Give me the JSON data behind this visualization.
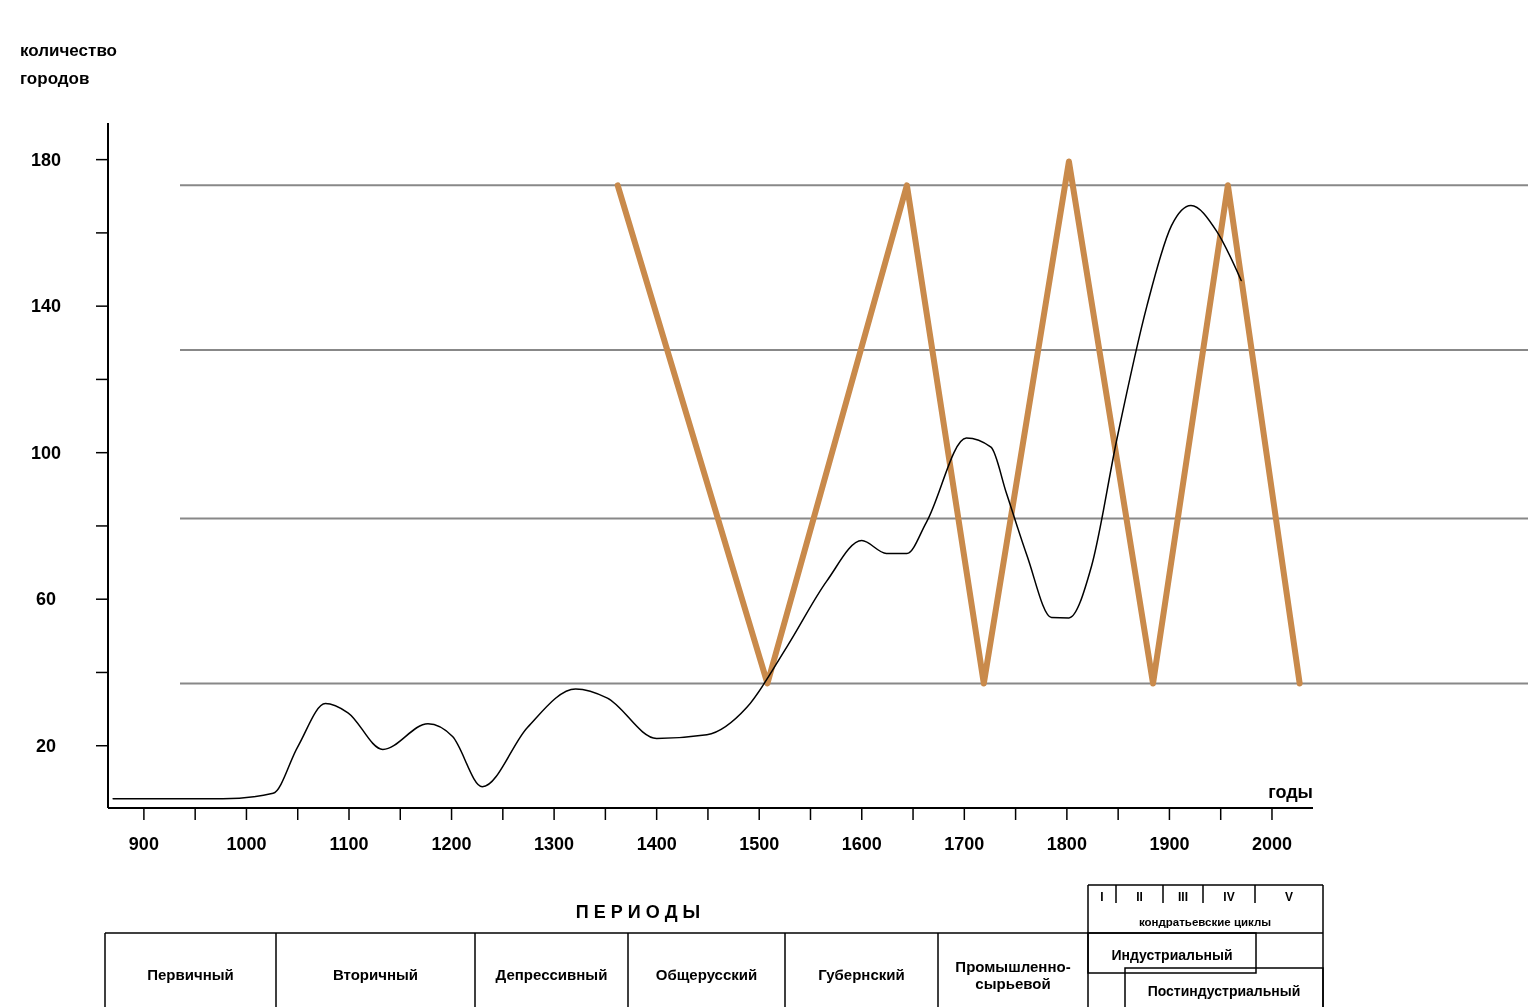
{
  "chart_data": {
    "type": "line",
    "xlabel": "годы",
    "ylabel": "количество городов",
    "xlim": [
      865,
      2040
    ],
    "ylim": [
      3,
      190
    ],
    "xticks": [
      900,
      {
        "value": 950,
        "label": null
      },
      1000,
      {
        "value": 1050,
        "label": null
      },
      1100,
      {
        "value": 1150,
        "label": null
      },
      1200,
      {
        "value": 1250,
        "label": null
      },
      1300,
      {
        "value": 1350,
        "label": null
      },
      1400,
      {
        "value": 1450,
        "label": null
      },
      1500,
      {
        "value": 1550,
        "label": null
      },
      1600,
      {
        "value": 1650,
        "label": null
      },
      1700,
      {
        "value": 1750,
        "label": null
      },
      1800,
      {
        "value": 1850,
        "label": null
      },
      1900,
      {
        "value": 1950,
        "label": null
      },
      2000
    ],
    "yticks": [
      20,
      {
        "value": 40,
        "label": null
      },
      60,
      {
        "value": 80,
        "label": null
      },
      100,
      {
        "value": 120,
        "label": null
      },
      140,
      {
        "value": 160,
        "label": null
      },
      180
    ],
    "grid": false,
    "legend": false,
    "marker": "none",
    "line_style": "solid",
    "series": [
      {
        "color": "#000000",
        "x": [
          870,
          977,
          1026,
          1050,
          1077,
          1099,
          1133,
          1177,
          1201,
          1230,
          1274,
          1321,
          1352,
          1400,
          1449,
          1488,
          1527,
          1566,
          1600,
          1624,
          1644,
          1663,
          1702,
          1726,
          1741,
          1761,
          1785,
          1802,
          1824,
          1849,
          1878,
          1902,
          1921,
          1946,
          1970
        ],
        "values": [
          5.5,
          5.5,
          7,
          19.7,
          31.5,
          29,
          19,
          26,
          22.5,
          8.8,
          25,
          35.5,
          33,
          22,
          23,
          30.5,
          47,
          65,
          76,
          72.5,
          72.5,
          81,
          104,
          101.5,
          89,
          72,
          55,
          54.9,
          69,
          104,
          140,
          162,
          167.5,
          160.5,
          147
        ]
      },
      {
        "color": "#c98a4b",
        "x": [
          1362,
          1508,
          1644,
          1719,
          1802,
          1884,
          1957,
          2027
        ],
        "values": [
          173,
          37,
          173,
          37,
          179.5,
          37,
          173,
          37
        ]
      }
    ],
    "ref_lines": [
      {
        "axis": "y",
        "value": 173,
        "color": "#888888"
      },
      {
        "axis": "y",
        "value": 128,
        "color": "#888888"
      },
      {
        "axis": "y",
        "value": 82,
        "color": "#888888"
      },
      {
        "axis": "y",
        "value": 37,
        "color": "#888888"
      }
    ],
    "annotations": [
      "П Е Р И О Д Ы",
      "Первичный",
      "Вторичный",
      "Депрессивный",
      "Общерусский",
      "Губернский",
      "Промышленно-сырьевой",
      "Индустриальный",
      "Постиндустриальный",
      "I",
      "II",
      "III",
      "IV",
      "V",
      "кондратьевские циклы"
    ]
  }
}
